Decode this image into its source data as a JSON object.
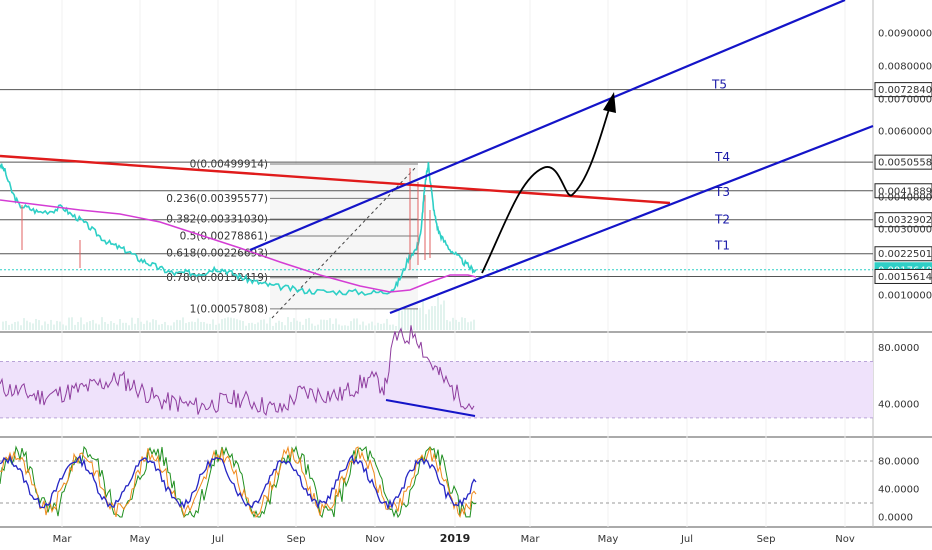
{
  "chart_data": {
    "type": "line",
    "instrument_panel": {
      "price_levels": [
        {
          "label": "0.00900000",
          "highlight": false
        },
        {
          "label": "0.00800000",
          "highlight": false
        },
        {
          "label": "0.00728405",
          "highlight": true
        },
        {
          "label": "0.00700000",
          "highlight": false
        },
        {
          "label": "0.00600000",
          "highlight": false
        },
        {
          "label": "0.00505582",
          "highlight": true
        },
        {
          "label": "0.00418890",
          "highlight": true
        },
        {
          "label": "0.00400000",
          "highlight": false
        },
        {
          "label": "0.00329021",
          "highlight": true
        },
        {
          "label": "0.00300000",
          "highlight": false
        },
        {
          "label": "0.00225015",
          "highlight": true
        },
        {
          "label": "0.00176483",
          "highlight": true,
          "current": true
        },
        {
          "label": "0.00156146",
          "highlight": true
        },
        {
          "label": "0.00100000",
          "highlight": false
        }
      ],
      "price_values": [
        0.009,
        0.008,
        0.00728405,
        0.007,
        0.006,
        0.00505582,
        0.0041889,
        0.004,
        0.00329021,
        0.003,
        0.00225015,
        0.00176483,
        0.00156146,
        0.001
      ],
      "fib_levels": [
        {
          "label": "0(0.00499914)",
          "value": 0.00499914
        },
        {
          "label": "0.236(0.00395577)",
          "value": 0.00395577
        },
        {
          "label": "0.382(0.00331030)",
          "value": 0.0033103
        },
        {
          "label": "0.5(0.00278861)",
          "value": 0.00278861
        },
        {
          "label": "0.618(0.00226693)",
          "value": 0.00226693
        },
        {
          "label": "0.786(0.00152419)",
          "value": 0.00152419
        },
        {
          "label": "1(0.00057808)",
          "value": 0.00057808
        }
      ],
      "targets": [
        {
          "label": "T5",
          "value": 0.00728405
        },
        {
          "label": "T4",
          "value": 0.00505582
        },
        {
          "label": "T3",
          "value": 0.0041889
        },
        {
          "label": "T2",
          "value": 0.00329021
        },
        {
          "label": "T1",
          "value": 0.00225015
        }
      ],
      "colors": {
        "price": "#2ecfc6",
        "moving_average": "#d43dd4",
        "channel": "#1414c8",
        "resistance": "#e01b1b",
        "projection": "#000000",
        "current_badge": "#2ecfc6"
      }
    },
    "rsi_panel": {
      "tick_labels": [
        "80.0000",
        "40.0000"
      ],
      "tick_values": [
        80,
        40
      ],
      "band": [
        30,
        70
      ],
      "colors": {
        "line": "#8e3d9e",
        "band": "#efe2fb",
        "divergence": "#1414c8"
      }
    },
    "stoch_panel": {
      "tick_labels": [
        "80.0000",
        "40.0000",
        "0.0000"
      ],
      "tick_values": [
        80,
        40,
        0
      ],
      "guides": [
        80,
        20
      ],
      "colors": {
        "k": "#1f8f1f",
        "d": "#f08a1c",
        "rsi": "#2626c4"
      }
    },
    "time_axis": [
      {
        "label": "Mar",
        "bold": false
      },
      {
        "label": "May",
        "bold": false
      },
      {
        "label": "Jul",
        "bold": false
      },
      {
        "label": "Sep",
        "bold": false
      },
      {
        "label": "Nov",
        "bold": false
      },
      {
        "label": "2019",
        "bold": true
      },
      {
        "label": "Mar",
        "bold": false
      },
      {
        "label": "May",
        "bold": false
      },
      {
        "label": "Jul",
        "bold": false
      },
      {
        "label": "Sep",
        "bold": false
      },
      {
        "label": "Nov",
        "bold": false
      }
    ]
  }
}
